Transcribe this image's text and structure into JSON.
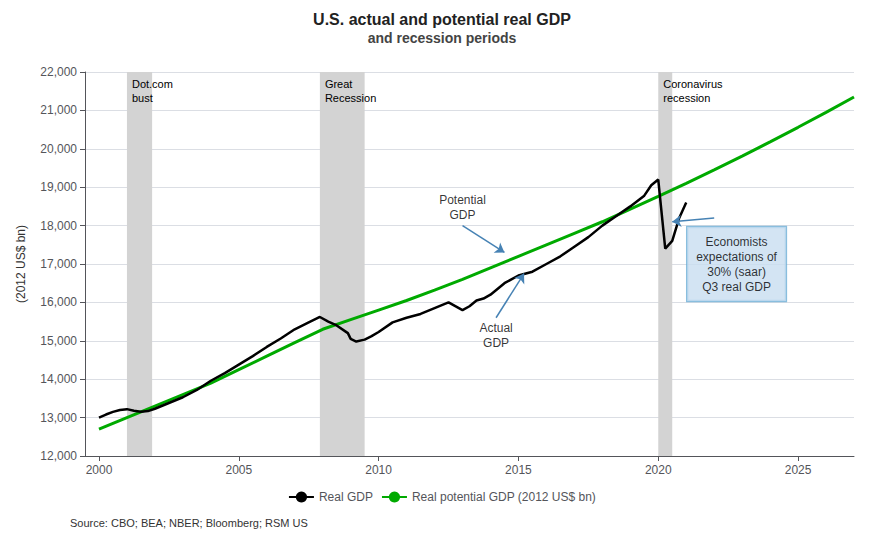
{
  "chart_data": {
    "type": "line",
    "title": "U.S. actual and potential real GDP",
    "subtitle": "and recession periods",
    "ylabel": "(2012 US$ bn)",
    "source": "Source: CBO; BEA; NBER; Bloomberg; RSM US",
    "xlim": [
      1999.5,
      2027
    ],
    "xticks": [
      2000,
      2005,
      2010,
      2015,
      2020,
      2025
    ],
    "ylim": [
      12000,
      22000
    ],
    "yticks": [
      {
        "value": 12000,
        "label": "12,000"
      },
      {
        "value": 13000,
        "label": "13,000"
      },
      {
        "value": 14000,
        "label": "14,000"
      },
      {
        "value": 15000,
        "label": "15,000"
      },
      {
        "value": 16000,
        "label": "16,000"
      },
      {
        "value": 17000,
        "label": "17,000"
      },
      {
        "value": 18000,
        "label": "18,000"
      },
      {
        "value": 19000,
        "label": "19,000"
      },
      {
        "value": 20000,
        "label": "20,000"
      },
      {
        "value": 21000,
        "label": "21,000"
      },
      {
        "value": 22000,
        "label": "22,000"
      }
    ],
    "grid": true,
    "legend": "bottom",
    "series": [
      {
        "name": "Real GDP",
        "color": "#000000",
        "x": [
          2000.0,
          2000.25,
          2000.5,
          2000.75,
          2001.0,
          2001.25,
          2001.5,
          2001.75,
          2002.0,
          2002.5,
          2003.0,
          2003.5,
          2004.0,
          2004.5,
          2005.0,
          2005.5,
          2006.0,
          2006.5,
          2007.0,
          2007.5,
          2007.9,
          2008.2,
          2008.5,
          2008.9,
          2009.0,
          2009.2,
          2009.5,
          2009.75,
          2010.0,
          2010.5,
          2011.0,
          2011.5,
          2012.0,
          2012.5,
          2013.0,
          2013.25,
          2013.5,
          2013.75,
          2014.0,
          2014.5,
          2015.0,
          2015.5,
          2016.0,
          2016.5,
          2017.0,
          2017.5,
          2018.0,
          2018.5,
          2019.0,
          2019.5,
          2019.75,
          2020.0,
          2020.25,
          2020.5,
          2020.75,
          2021.0
        ],
        "values": [
          13000,
          13080,
          13150,
          13200,
          13220,
          13180,
          13150,
          13170,
          13230,
          13380,
          13530,
          13720,
          13960,
          14160,
          14380,
          14600,
          14840,
          15060,
          15300,
          15480,
          15620,
          15500,
          15400,
          15200,
          15050,
          14980,
          15030,
          15120,
          15230,
          15480,
          15600,
          15700,
          15850,
          16000,
          15800,
          15900,
          16050,
          16100,
          16200,
          16500,
          16700,
          16800,
          17000,
          17200,
          17450,
          17700,
          18000,
          18250,
          18500,
          18780,
          19050,
          19200,
          17400,
          17600,
          18200,
          18600
        ]
      },
      {
        "name": "Real potential GDP (2012 US$ bn)",
        "color": "#00aa00",
        "x": [
          2000,
          2001,
          2002,
          2003,
          2004,
          2005,
          2006,
          2007,
          2008,
          2009,
          2010,
          2011,
          2012,
          2013,
          2014,
          2015,
          2016,
          2017,
          2018,
          2019,
          2020,
          2021,
          2022,
          2023,
          2024,
          2025,
          2026,
          2027
        ],
        "values": [
          12700,
          13000,
          13300,
          13600,
          13900,
          14250,
          14600,
          14950,
          15300,
          15550,
          15800,
          16050,
          16320,
          16600,
          16900,
          17200,
          17500,
          17800,
          18100,
          18430,
          18760,
          19100,
          19450,
          19810,
          20180,
          20560,
          20950,
          21350
        ]
      }
    ],
    "recession_color": "#d3d3d3",
    "recessions": [
      {
        "start": 2001.0,
        "end": 2001.9,
        "label": "Dot.com\nbust"
      },
      {
        "start": 2007.9,
        "end": 2009.5,
        "label": "Great\nRecession"
      },
      {
        "start": 2020.0,
        "end": 2020.5,
        "label": "Coronavirus\nrecession"
      }
    ],
    "arrow_color": "#4682b4",
    "annotations": [
      {
        "text": "Potential\nGDP",
        "x": 2013.0,
        "y": 18000,
        "arrow_x": 2014.5,
        "arrow_y": 17300
      },
      {
        "text": "Actual\nGDP",
        "x": 2014.2,
        "y": 15600,
        "arrow_x": 2015.2,
        "arrow_y": 16750
      },
      {
        "text": "Economists\nexpectations of\n30% (saar)\nQ3 real GDP",
        "x": 2022.8,
        "y": 17000,
        "color": "#c8ddf0",
        "border_color": "#6baed6"
      },
      {
        "x": 2022.0,
        "y": 18200,
        "arrow_x": 2020.5,
        "arrow_y": 18100
      }
    ]
  }
}
